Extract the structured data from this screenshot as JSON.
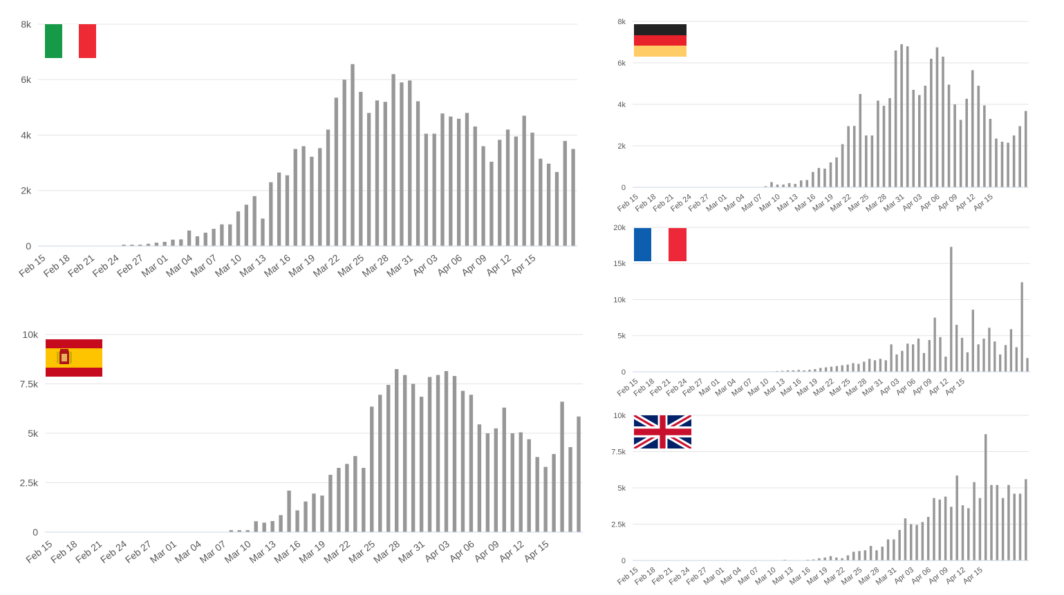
{
  "chart_data": [
    {
      "id": "italy",
      "type": "bar",
      "flag": "italy-flag",
      "flag_colors": [
        "#179a48",
        "#ffffff",
        "#ee2a35"
      ],
      "bar_color": "#979797",
      "ylim": [
        0,
        8000
      ],
      "yticks": [
        0,
        2000,
        4000,
        6000,
        8000
      ],
      "ytick_labels": [
        "0",
        "2k",
        "4k",
        "6k",
        "8k"
      ],
      "x_start": "Feb 15",
      "xtick_labels": [
        "Feb 15",
        "Feb 18",
        "Feb 21",
        "Feb 24",
        "Feb 27",
        "Mar 01",
        "Mar 04",
        "Mar 07",
        "Mar 10",
        "Mar 13",
        "Mar 16",
        "Mar 19",
        "Mar 22",
        "Mar 25",
        "Mar 28",
        "Mar 31",
        "Apr 03",
        "Apr 06",
        "Apr 09",
        "Apr 12",
        "Apr 15"
      ],
      "values": [
        0,
        0,
        0,
        0,
        0,
        0,
        0,
        0,
        0,
        0,
        50,
        50,
        50,
        80,
        120,
        150,
        230,
        240,
        560,
        350,
        480,
        620,
        780,
        780,
        1250,
        1490,
        1800,
        990,
        2300,
        2650,
        2550,
        3500,
        3600,
        3220,
        3530,
        4200,
        5350,
        6000,
        6560,
        5560,
        4800,
        5250,
        5200,
        6200,
        5900,
        5970,
        5220,
        4050,
        4050,
        4780,
        4670,
        4590,
        4800,
        4310,
        3600,
        3040,
        3830,
        4200,
        3950,
        4700,
        4090,
        3150,
        2970,
        2670,
        3790,
        3500
      ]
    },
    {
      "id": "germany",
      "type": "bar",
      "flag": "germany-flag",
      "flag_colors": [
        "#222222",
        "#e8212b",
        "#ffcc66"
      ],
      "bar_color": "#979797",
      "ylim": [
        0,
        8000
      ],
      "yticks": [
        0,
        2000,
        4000,
        6000,
        8000
      ],
      "ytick_labels": [
        "0",
        "2k",
        "4k",
        "6k",
        "8k"
      ],
      "x_start": "Feb 15",
      "xtick_labels": [
        "Feb 15",
        "Feb 18",
        "Feb 21",
        "Feb 24",
        "Feb 27",
        "Mar 01",
        "Mar 04",
        "Mar 07",
        "Mar 10",
        "Mar 13",
        "Mar 16",
        "Mar 19",
        "Mar 22",
        "Mar 25",
        "Mar 28",
        "Mar 31",
        "Apr 03",
        "Apr 06",
        "Apr 09",
        "Apr 12",
        "Apr 15"
      ],
      "values": [
        0,
        0,
        0,
        0,
        0,
        0,
        0,
        0,
        0,
        0,
        0,
        0,
        0,
        0,
        0,
        0,
        0,
        0,
        0,
        0,
        0,
        0,
        50,
        250,
        130,
        130,
        200,
        160,
        330,
        350,
        740,
        930,
        900,
        1200,
        1440,
        2080,
        2950,
        2960,
        4500,
        2500,
        2500,
        4180,
        3930,
        4300,
        6600,
        6900,
        6800,
        4700,
        4450,
        4900,
        6200,
        6750,
        6300,
        4950,
        4000,
        3250,
        4270,
        5650,
        4900,
        3950,
        3300,
        2350,
        2200,
        2150,
        2500,
        2950,
        3680
      ]
    },
    {
      "id": "france",
      "type": "bar",
      "flag": "france-flag",
      "flag_colors": [
        "#0d5eaf",
        "#ffffff",
        "#ed2939"
      ],
      "bar_color": "#979797",
      "ylim": [
        0,
        20000
      ],
      "yticks": [
        0,
        5000,
        10000,
        15000,
        20000
      ],
      "ytick_labels": [
        "0",
        "5k",
        "10k",
        "15k",
        "20k"
      ],
      "x_start": "Feb 15",
      "xtick_labels": [
        "Feb 15",
        "Feb 18",
        "Feb 21",
        "Feb 24",
        "Feb 27",
        "Mar 01",
        "Mar 04",
        "Mar 07",
        "Mar 10",
        "Mar 13",
        "Mar 16",
        "Mar 19",
        "Mar 22",
        "Mar 25",
        "Mar 28",
        "Mar 31",
        "Apr 03",
        "Apr 06",
        "Apr 09",
        "Apr 12",
        "Apr 15"
      ],
      "values": [
        0,
        0,
        0,
        0,
        0,
        0,
        0,
        0,
        0,
        0,
        0,
        0,
        0,
        0,
        0,
        0,
        0,
        0,
        0,
        0,
        0,
        0,
        0,
        0,
        0,
        50,
        100,
        140,
        200,
        200,
        260,
        200,
        280,
        370,
        530,
        620,
        710,
        800,
        900,
        1000,
        1200,
        1100,
        1400,
        1800,
        1600,
        1800,
        1600,
        3800,
        2400,
        2900,
        3900,
        3800,
        4600,
        2600,
        4400,
        7500,
        4800,
        2100,
        17300,
        6500,
        4700,
        2700,
        8600,
        3800,
        4600,
        6100,
        4200,
        2400,
        3700,
        5900,
        3400,
        12400,
        1900
      ]
    },
    {
      "id": "spain",
      "type": "bar",
      "flag": "spain-flag",
      "flag_colors": [
        "#c60b1e",
        "#ffc400"
      ],
      "bar_color": "#979797",
      "ylim": [
        0,
        10000
      ],
      "yticks": [
        0,
        2500,
        5000,
        7500,
        10000
      ],
      "ytick_labels": [
        "0",
        "2.5k",
        "5k",
        "7.5k",
        "10k"
      ],
      "x_start": "Feb 15",
      "xtick_labels": [
        "Feb 15",
        "Feb 18",
        "Feb 21",
        "Feb 24",
        "Feb 27",
        "Mar 01",
        "Mar 04",
        "Mar 07",
        "Mar 10",
        "Mar 13",
        "Mar 16",
        "Mar 19",
        "Mar 22",
        "Mar 25",
        "Mar 28",
        "Mar 31",
        "Apr 03",
        "Apr 06",
        "Apr 09",
        "Apr 12",
        "Apr 15"
      ],
      "values": [
        0,
        0,
        0,
        0,
        0,
        0,
        0,
        0,
        0,
        0,
        0,
        0,
        0,
        0,
        0,
        0,
        0,
        0,
        0,
        0,
        0,
        0,
        100,
        100,
        100,
        550,
        480,
        560,
        860,
        2100,
        1100,
        1550,
        1950,
        1850,
        2900,
        3250,
        3450,
        3850,
        3250,
        6350,
        6950,
        7450,
        8250,
        7950,
        7500,
        6850,
        7850,
        7950,
        8150,
        7900,
        7150,
        6950,
        5450,
        5000,
        5250,
        6300,
        5000,
        5050,
        4700,
        3800,
        3300,
        3950,
        6600,
        4300,
        5850
      ]
    },
    {
      "id": "uk",
      "type": "bar",
      "flag": "uk-flag",
      "flag_colors": [
        "#012169",
        "#ffffff",
        "#c8102e"
      ],
      "bar_color": "#979797",
      "ylim": [
        0,
        10000
      ],
      "yticks": [
        0,
        2500,
        5000,
        7500,
        10000
      ],
      "ytick_labels": [
        "0",
        "2.5k",
        "5k",
        "7.5k",
        "10k"
      ],
      "x_start": "Feb 15",
      "xtick_labels": [
        "Feb 15",
        "Feb 18",
        "Feb 21",
        "Feb 24",
        "Feb 27",
        "Mar 01",
        "Mar 04",
        "Mar 07",
        "Mar 10",
        "Mar 13",
        "Mar 16",
        "Mar 19",
        "Mar 22",
        "Mar 25",
        "Mar 28",
        "Mar 31",
        "Apr 03",
        "Apr 06",
        "Apr 09",
        "Apr 12",
        "Apr 15"
      ],
      "values": [
        0,
        0,
        0,
        0,
        0,
        0,
        0,
        0,
        0,
        0,
        0,
        0,
        0,
        0,
        0,
        0,
        0,
        0,
        0,
        0,
        0,
        0,
        0,
        0,
        0,
        0,
        50,
        0,
        0,
        0,
        50,
        70,
        150,
        200,
        300,
        200,
        150,
        350,
        600,
        650,
        700,
        1000,
        700,
        950,
        1450,
        1450,
        2100,
        2900,
        2500,
        2450,
        2650,
        3000,
        4300,
        4200,
        4400,
        3700,
        5850,
        3800,
        3600,
        5400,
        4300,
        8700,
        5200,
        5200,
        4300,
        5200,
        4600,
        4600,
        5600
      ]
    }
  ]
}
